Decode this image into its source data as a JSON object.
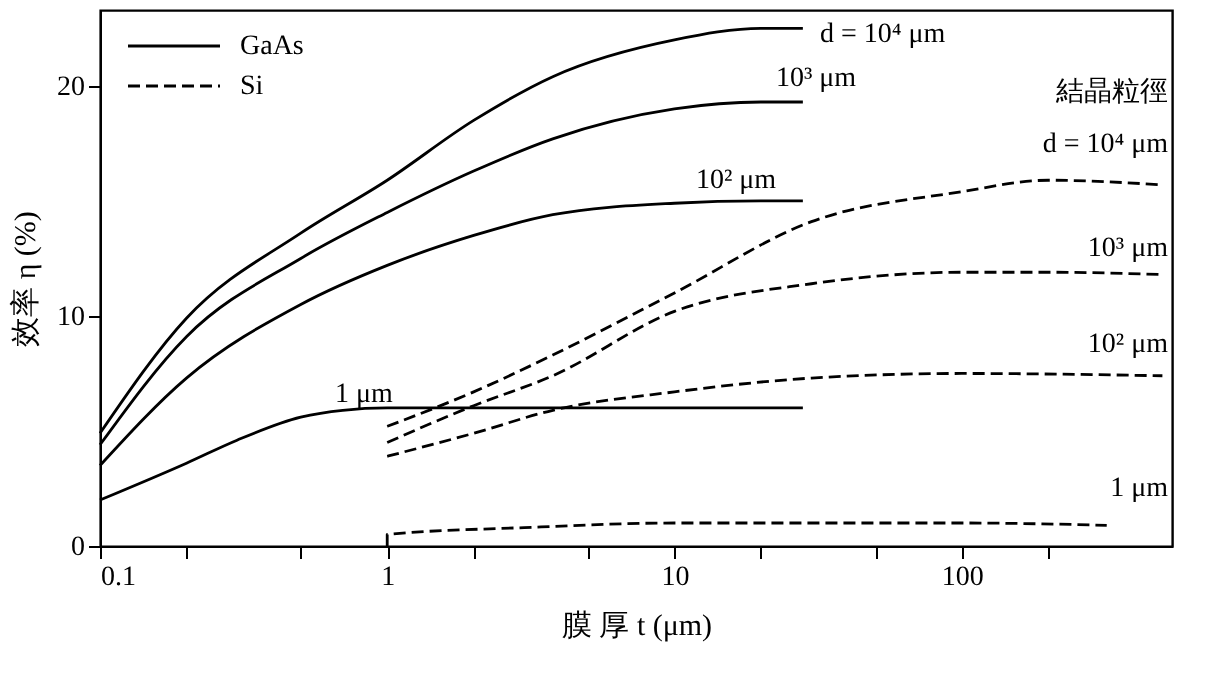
{
  "chart_data": {
    "type": "line",
    "xlabel": "膜 厚 t (μm)",
    "ylabel": "效率 η (%)",
    "log": "x",
    "xlim": [
      0.1,
      540
    ],
    "ylim": [
      0,
      23.3
    ],
    "xticks": [
      0.1,
      {
        "value": 0.2,
        "label": null
      },
      {
        "value": 0.5,
        "label": null
      },
      1,
      {
        "value": 2,
        "label": null
      },
      {
        "value": 5,
        "label": null
      },
      10,
      {
        "value": 20,
        "label": null
      },
      {
        "value": 50,
        "label": null
      },
      100,
      {
        "value": 200,
        "label": null
      }
    ],
    "yticks": [
      0,
      10,
      20
    ],
    "grid": false,
    "legend": "top left",
    "marker": "none",
    "series": [
      {
        "name": "GaAs",
        "color": "#000000",
        "line_style": "solid",
        "x": [
          0.1,
          0.2,
          0.5,
          1,
          2,
          3.77,
          10,
          20,
          28
        ],
        "values": [
          4.9,
          9.9,
          13.6,
          15.9,
          18.5,
          20.4,
          22.0,
          22.5,
          22.5
        ]
      },
      {
        "color": "#000000",
        "line_style": "solid",
        "x": [
          0.1,
          0.2,
          0.5,
          1,
          2,
          3.77,
          10,
          20,
          28
        ],
        "values": [
          4.4,
          9.1,
          12.5,
          14.5,
          16.3,
          17.7,
          19.0,
          19.3,
          19.3
        ]
      },
      {
        "color": "#000000",
        "line_style": "solid",
        "x": [
          0.1,
          0.2,
          0.5,
          1,
          2,
          3.77,
          10,
          20,
          28
        ],
        "values": [
          3.5,
          7.3,
          10.5,
          12.2,
          13.5,
          14.4,
          14.9,
          15.0,
          15.0
        ]
      },
      {
        "color": "#000000",
        "line_style": "solid",
        "x": [
          0.1,
          0.2,
          0.3,
          0.5,
          0.7,
          1,
          3,
          10,
          28
        ],
        "values": [
          2.0,
          3.6,
          4.6,
          5.6,
          5.9,
          6.0,
          6.0,
          6.0,
          6.0
        ]
      },
      {
        "name": "Si",
        "color": "#000000",
        "line_style": "dashed",
        "x": [
          1,
          2,
          3.77,
          10,
          30,
          100,
          200,
          500
        ],
        "values": [
          5.2,
          6.7,
          8.3,
          11.0,
          14.1,
          15.4,
          15.9,
          15.7
        ]
      },
      {
        "color": "#000000",
        "line_style": "dashed",
        "x": [
          1,
          2,
          3.77,
          10,
          30,
          100,
          200,
          500
        ],
        "values": [
          4.5,
          6.1,
          7.4,
          10.2,
          11.4,
          11.9,
          11.9,
          11.8
        ]
      },
      {
        "color": "#000000",
        "line_style": "dashed",
        "x": [
          1,
          2,
          3.77,
          10,
          30,
          100,
          500
        ],
        "values": [
          3.9,
          4.9,
          5.9,
          6.7,
          7.3,
          7.5,
          7.4
        ]
      },
      {
        "color": "#000000",
        "line_style": "dashed",
        "x": [
          1,
          1,
          3,
          10,
          30,
          100,
          320
        ],
        "values": [
          0,
          0.5,
          0.8,
          1.0,
          1.0,
          1.0,
          0.9
        ]
      }
    ],
    "annotations": [
      "d = 10⁴ μm",
      "10³ μm",
      "10² μm",
      "1 μm",
      "結晶粒徑",
      "d = 10⁴ μm",
      "10³ μm",
      "10² μm",
      "1 μm"
    ]
  }
}
